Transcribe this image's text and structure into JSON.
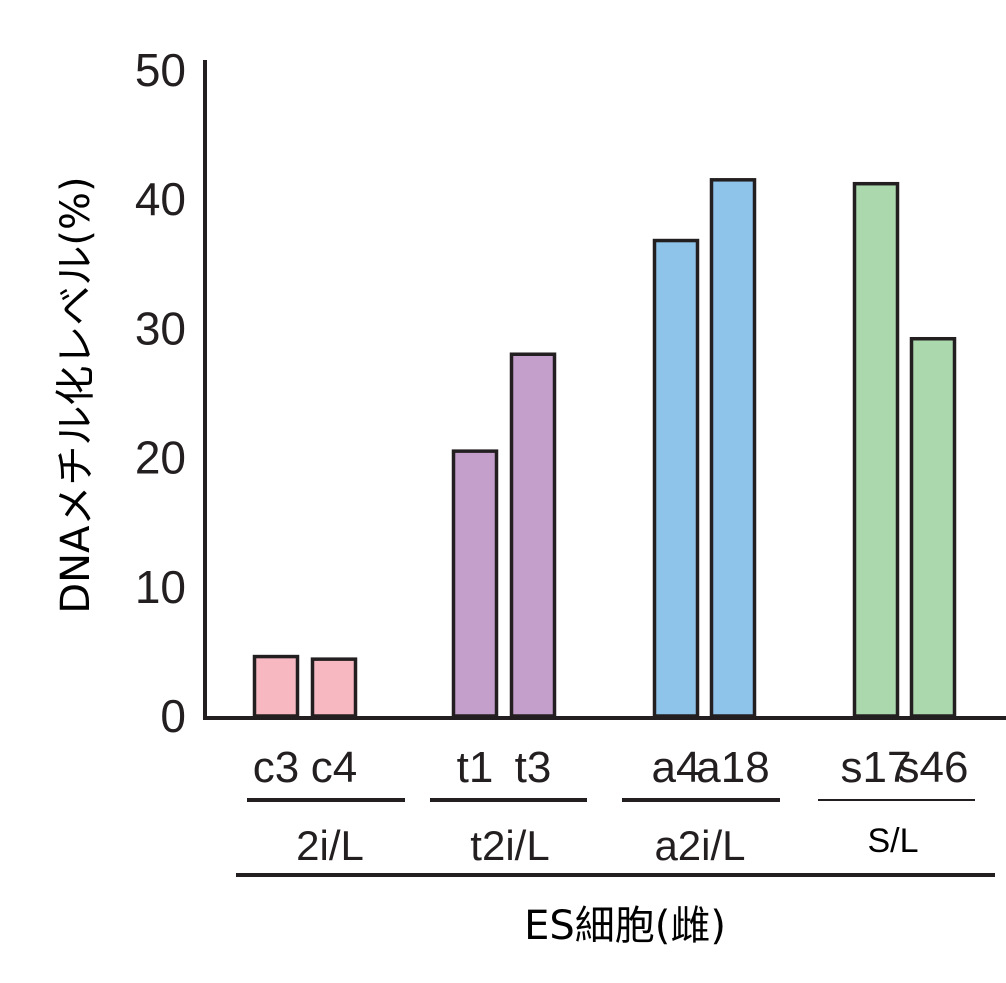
{
  "chart_data": {
    "type": "bar",
    "ylabel": "DNAメチル化レベル(%)",
    "xlabel": "ES細胞(雌)",
    "ylim": [
      0,
      50
    ],
    "yticks": [
      0,
      10,
      20,
      30,
      40,
      50
    ],
    "grid": false,
    "categories": [
      "c3",
      "c4",
      "t1",
      "t3",
      "a4",
      "a18",
      "s17",
      "s46"
    ],
    "values": [
      4.6,
      4.4,
      20.5,
      28.0,
      36.8,
      41.5,
      41.2,
      29.2
    ],
    "groups": [
      {
        "label": "2i/L",
        "categories": [
          "c3",
          "c4"
        ],
        "color": "#f7b8c2"
      },
      {
        "label": "t2i/L",
        "categories": [
          "t1",
          "t3"
        ],
        "color": "#c59fcc"
      },
      {
        "label": "a2i/L",
        "categories": [
          "a4",
          "a18"
        ],
        "color": "#8ec4ea"
      },
      {
        "label": "S/L",
        "categories": [
          "s17",
          "s46"
        ],
        "color": "#abd8ad"
      }
    ]
  }
}
